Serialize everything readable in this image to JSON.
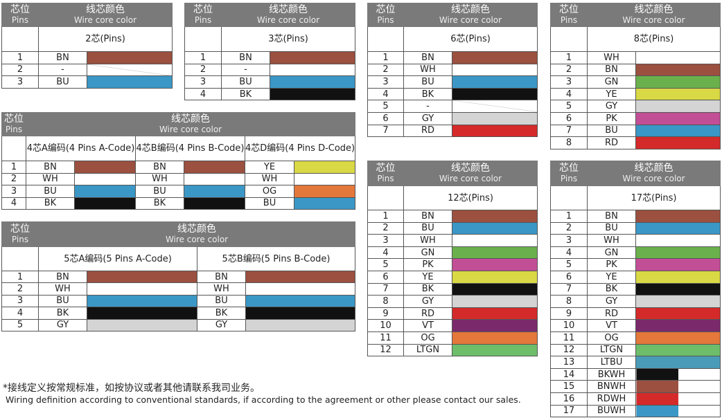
{
  "colors": {
    "BN": "#9b5040",
    "BU": "#3a97c6",
    "BK": "#111111",
    "WH": "#ffffff",
    "GN": "#6ab04c",
    "YE": "#d9d845",
    "GY": "#d4d4d4",
    "PK": "#c24e96",
    "RD": "#d42a2a",
    "OG": "#e4773a",
    "VT": "#7a2a6b",
    "LTGN": "#6dbd6a",
    "LTBU": "#4a9bb8",
    "header": "#7a7a7a"
  },
  "header": {
    "pins_cn": "芯位",
    "pins_en": "Pins",
    "color_cn": "线芯颜色",
    "color_en": "Wire core color"
  },
  "tables": [
    {
      "groups": [
        "2芯(Pins)"
      ],
      "rows": [
        [
          "1",
          [
            "BN",
            "BN"
          ]
        ],
        [
          "2",
          [
            "-",
            "diag"
          ]
        ],
        [
          "3",
          [
            "BU",
            "BU"
          ]
        ]
      ]
    },
    {
      "groups": [
        "3芯(Pins)"
      ],
      "rows": [
        [
          "1",
          [
            "BN",
            "BN"
          ]
        ],
        [
          "2",
          [
            "-",
            "WH"
          ]
        ],
        [
          "3",
          [
            "BU",
            "BU"
          ]
        ],
        [
          "4",
          [
            "BK",
            "BK"
          ]
        ]
      ]
    },
    {
      "groups": [
        "6芯(Pins)"
      ],
      "rows": [
        [
          "1",
          [
            "BN",
            "BN"
          ]
        ],
        [
          "2",
          [
            "WH",
            "WH"
          ]
        ],
        [
          "3",
          [
            "BU",
            "BU"
          ]
        ],
        [
          "4",
          [
            "BK",
            "BK"
          ]
        ],
        [
          "5",
          [
            "-",
            "diag"
          ]
        ],
        [
          "6",
          [
            "GY",
            "GY"
          ]
        ],
        [
          "7",
          [
            "RD",
            "RD"
          ]
        ]
      ]
    },
    {
      "groups": [
        "8芯(Pins)"
      ],
      "rows": [
        [
          "1",
          [
            "WH",
            "WH"
          ]
        ],
        [
          "2",
          [
            "BN",
            "BN"
          ]
        ],
        [
          "3",
          [
            "GN",
            "GN"
          ]
        ],
        [
          "4",
          [
            "YE",
            "YE"
          ]
        ],
        [
          "5",
          [
            "GY",
            "GY"
          ]
        ],
        [
          "6",
          [
            "PK",
            "PK"
          ]
        ],
        [
          "7",
          [
            "BU",
            "BU"
          ]
        ],
        [
          "8",
          [
            "RD",
            "RD"
          ]
        ]
      ]
    },
    {
      "groups": [
        "4芯A编码(4 Pins A-Code)",
        "4芯B编码(4 Pins B-Code)",
        "4芯D编码(4 Pins D-Code)"
      ],
      "rows": [
        [
          "1",
          [
            "BN",
            "BN"
          ],
          [
            "BN",
            "BN"
          ],
          [
            "YE",
            "YE"
          ]
        ],
        [
          "2",
          [
            "WH",
            "WH"
          ],
          [
            "WH",
            "WH"
          ],
          [
            "WH",
            "WH"
          ]
        ],
        [
          "3",
          [
            "BU",
            "BU"
          ],
          [
            "BU",
            "BU"
          ],
          [
            "OG",
            "OG"
          ]
        ],
        [
          "4",
          [
            "BK",
            "BK"
          ],
          [
            "BK",
            "BK"
          ],
          [
            "BU",
            "BU"
          ]
        ]
      ]
    },
    {
      "groups": [
        "5芯A编码(5 Pins A-Code)",
        "5芯B编码(5 Pins B-Code)"
      ],
      "rows": [
        [
          "1",
          [
            "BN",
            "BN"
          ],
          [
            "BN",
            "BN"
          ]
        ],
        [
          "2",
          [
            "WH",
            "WH"
          ],
          [
            "WH",
            "WH"
          ]
        ],
        [
          "3",
          [
            "BU",
            "BU"
          ],
          [
            "BU",
            "BU"
          ]
        ],
        [
          "4",
          [
            "BK",
            "BK"
          ],
          [
            "BK",
            "BK"
          ]
        ],
        [
          "5",
          [
            "GY",
            "GY"
          ],
          [
            "GY",
            "GY"
          ]
        ]
      ]
    },
    {
      "groups": [
        "12芯(Pins)"
      ],
      "rows": [
        [
          "1",
          [
            "BN",
            "BN"
          ]
        ],
        [
          "2",
          [
            "BU",
            "BU"
          ]
        ],
        [
          "3",
          [
            "WH",
            "WH"
          ]
        ],
        [
          "4",
          [
            "GN",
            "GN"
          ]
        ],
        [
          "5",
          [
            "PK",
            "PK"
          ]
        ],
        [
          "6",
          [
            "YE",
            "YE"
          ]
        ],
        [
          "7",
          [
            "BK",
            "BK"
          ]
        ],
        [
          "8",
          [
            "GY",
            "GY"
          ]
        ],
        [
          "9",
          [
            "RD",
            "RD"
          ]
        ],
        [
          "10",
          [
            "VT",
            "VT"
          ]
        ],
        [
          "11",
          [
            "OG",
            "OG"
          ]
        ],
        [
          "12",
          [
            "LTGN",
            "LTGN"
          ]
        ]
      ]
    },
    {
      "groups": [
        "17芯(Pins)"
      ],
      "rows": [
        [
          "1",
          [
            "BN",
            "BN"
          ]
        ],
        [
          "2",
          [
            "BU",
            "BU"
          ]
        ],
        [
          "3",
          [
            "WH",
            "WH"
          ]
        ],
        [
          "4",
          [
            "GN",
            "GN"
          ]
        ],
        [
          "5",
          [
            "PK",
            "PK"
          ]
        ],
        [
          "6",
          [
            "YE",
            "YE"
          ]
        ],
        [
          "7",
          [
            "BK",
            "BK"
          ]
        ],
        [
          "8",
          [
            "GY",
            "GY"
          ]
        ],
        [
          "9",
          [
            "RD",
            "RD"
          ]
        ],
        [
          "10",
          [
            "VT",
            "VT"
          ]
        ],
        [
          "11",
          [
            "OG",
            "OG"
          ]
        ],
        [
          "12",
          [
            "LTGN",
            "LTGN"
          ]
        ],
        [
          "13",
          [
            "LTBU",
            "LTBU"
          ]
        ],
        [
          "14",
          [
            "BKWH",
            "BK/WH"
          ]
        ],
        [
          "15",
          [
            "BNWH",
            "BN/WH"
          ]
        ],
        [
          "16",
          [
            "RDWH",
            "RD/WH"
          ]
        ],
        [
          "17",
          [
            "BUWH",
            "BU/WH"
          ]
        ]
      ]
    }
  ],
  "footer": {
    "cn": "*接线定义按常规标准，如按协议或者其他请联系我司业务。",
    "en": "Wiring definition according to conventional standards, if according to the agreement or other please contact our sales."
  }
}
